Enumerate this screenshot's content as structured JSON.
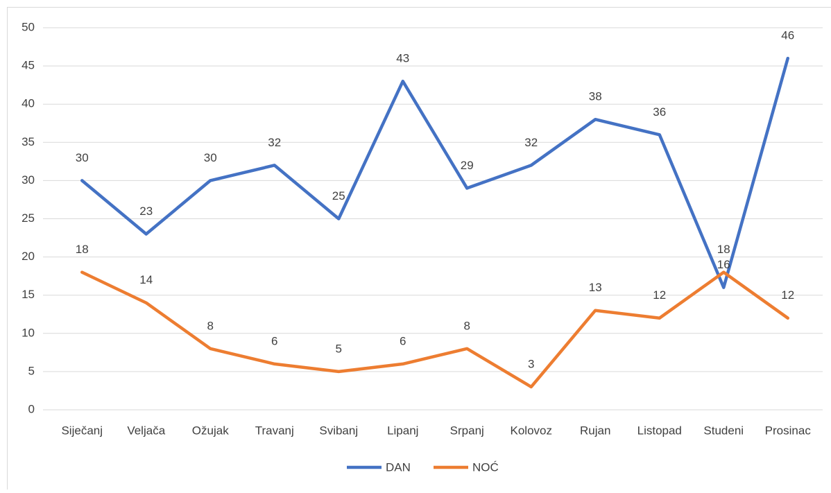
{
  "chart_data": {
    "type": "line",
    "categories": [
      "Siječanj",
      "Veljača",
      "Ožujak",
      "Travanj",
      "Svibanj",
      "Lipanj",
      "Srpanj",
      "Kolovoz",
      "Rujan",
      "Listopad",
      "Studeni",
      "Prosinac"
    ],
    "series": [
      {
        "name": "DAN",
        "color": "#4472c4",
        "values": [
          30,
          23,
          30,
          32,
          25,
          43,
          29,
          32,
          38,
          36,
          16,
          46
        ]
      },
      {
        "name": "NOĆ",
        "color": "#ed7d31",
        "values": [
          18,
          14,
          8,
          6,
          5,
          6,
          8,
          3,
          13,
          12,
          18,
          12
        ]
      }
    ],
    "ylim": [
      0,
      50
    ],
    "yticks": [
      0,
      5,
      10,
      15,
      20,
      25,
      30,
      35,
      40,
      45,
      50
    ],
    "grid": true,
    "legend": "bottom"
  }
}
